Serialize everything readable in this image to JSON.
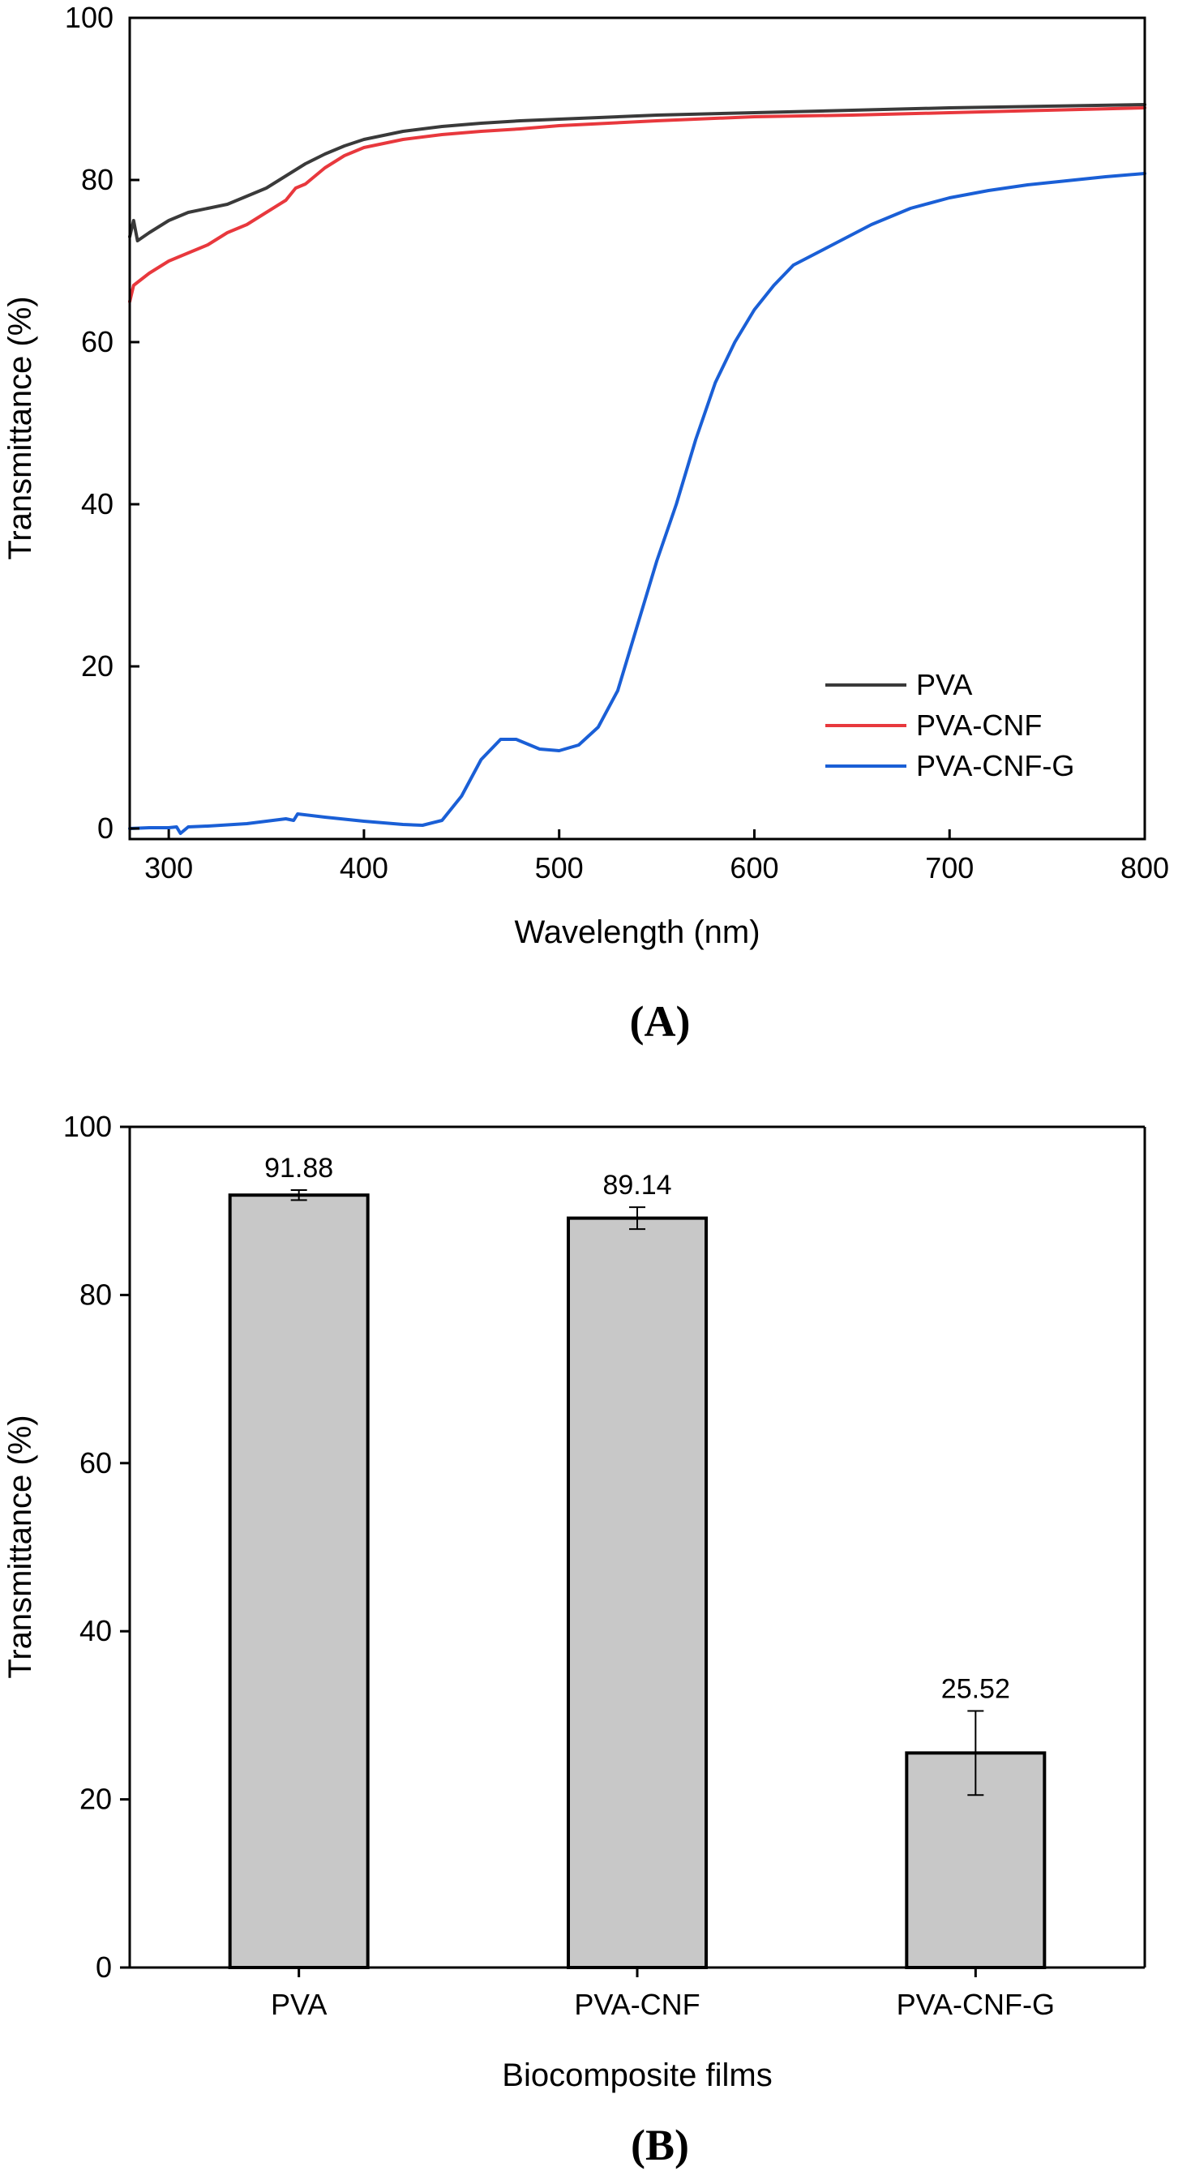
{
  "chart_data": [
    {
      "panel_label": "(A)",
      "type": "line",
      "title": "",
      "xlabel": "Wavelength (nm)",
      "ylabel": "Transmittance (%)",
      "xlim": [
        280,
        800
      ],
      "ylim": [
        -1,
        100
      ],
      "xticks": [
        300,
        400,
        500,
        600,
        700,
        800
      ],
      "yticks": [
        0,
        20,
        40,
        60,
        80,
        100
      ],
      "grid": false,
      "legend": "bottom-right",
      "series": [
        {
          "name": "PVA",
          "color": "#3a3a3a",
          "x": [
            280,
            282,
            284,
            290,
            300,
            310,
            320,
            330,
            340,
            350,
            360,
            370,
            380,
            390,
            400,
            420,
            440,
            460,
            480,
            500,
            550,
            600,
            650,
            700,
            750,
            800
          ],
          "y": [
            73,
            75,
            72.5,
            73.5,
            75,
            76,
            76.5,
            77,
            78,
            79,
            80.5,
            82,
            83.2,
            84.2,
            85,
            86,
            86.6,
            87,
            87.3,
            87.5,
            88,
            88.3,
            88.6,
            88.9,
            89.1,
            89.3
          ]
        },
        {
          "name": "PVA-CNF",
          "color": "#e8383d",
          "x": [
            280,
            282,
            290,
            300,
            310,
            320,
            330,
            340,
            350,
            360,
            365,
            370,
            380,
            390,
            400,
            420,
            440,
            460,
            480,
            500,
            550,
            600,
            650,
            700,
            750,
            800
          ],
          "y": [
            65,
            67,
            68.5,
            70,
            71,
            72,
            73.5,
            74.5,
            76,
            77.5,
            79,
            79.5,
            81.5,
            83,
            84,
            85,
            85.6,
            86,
            86.3,
            86.7,
            87.3,
            87.8,
            88,
            88.3,
            88.6,
            88.9
          ]
        },
        {
          "name": "PVA-CNF-G",
          "color": "#1a5fd6",
          "x": [
            280,
            290,
            300,
            304,
            306,
            310,
            320,
            340,
            360,
            364,
            366,
            380,
            400,
            420,
            430,
            440,
            450,
            460,
            470,
            478,
            490,
            500,
            510,
            520,
            530,
            540,
            550,
            560,
            570,
            580,
            590,
            600,
            610,
            620,
            640,
            660,
            680,
            700,
            720,
            740,
            760,
            780,
            800
          ],
          "y": [
            0,
            0.1,
            0.1,
            0.2,
            -0.6,
            0.2,
            0.3,
            0.6,
            1.2,
            1.0,
            1.8,
            1.4,
            0.9,
            0.5,
            0.4,
            1.0,
            4.0,
            8.5,
            11,
            11,
            9.8,
            9.6,
            10.3,
            12.5,
            17,
            25,
            33,
            40,
            48,
            55,
            60,
            64,
            67,
            69.5,
            72,
            74.5,
            76.5,
            77.8,
            78.7,
            79.4,
            79.9,
            80.4,
            80.8
          ]
        }
      ]
    },
    {
      "panel_label": "(B)",
      "type": "bar",
      "title": "",
      "xlabel": "Biocomposite films",
      "ylabel": "Transmittance (%)",
      "ylim": [
        0,
        100
      ],
      "yticks": [
        0,
        20,
        40,
        60,
        80,
        100
      ],
      "grid": false,
      "bar_color": "#c8c8c8",
      "categories": [
        "PVA",
        "PVA-CNF",
        "PVA-CNF-G"
      ],
      "values": [
        91.88,
        89.14,
        25.52
      ],
      "value_labels": [
        "91.88",
        "89.14",
        "25.52"
      ],
      "errors": [
        0.6,
        1.3,
        5.0
      ]
    }
  ]
}
